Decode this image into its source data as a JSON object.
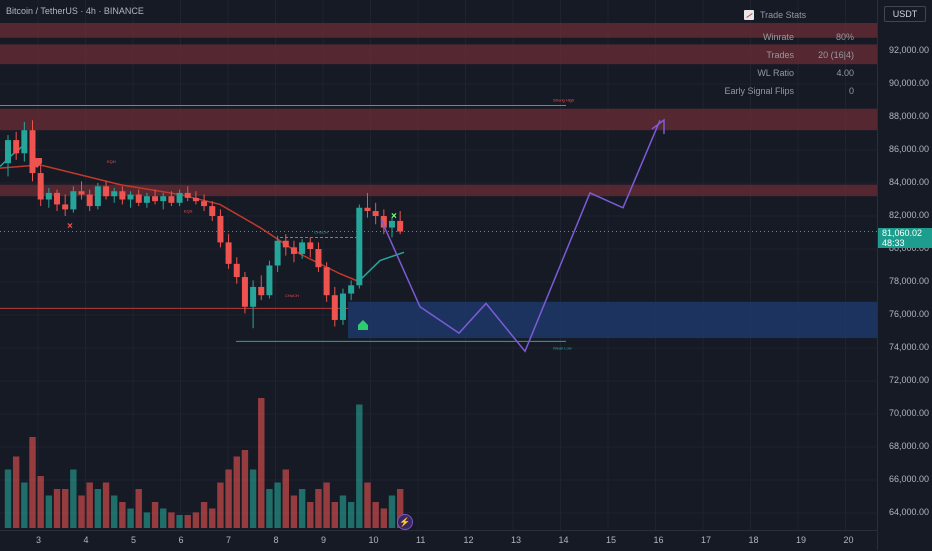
{
  "header": {
    "symbol_title": "Bitcoin / TetherUS · 4h · BINANCE",
    "currency": "USDT"
  },
  "trade_stats": {
    "title": "Trade Stats",
    "rows": [
      {
        "label": "Winrate",
        "value": "80%"
      },
      {
        "label": "Trades",
        "value": "20 (16|4)"
      },
      {
        "label": "WL Ratio",
        "value": "4.00"
      },
      {
        "label": "Early Signal Flips",
        "value": "0"
      }
    ]
  },
  "price_axis": {
    "labels": [
      "92,000.00",
      "90,000.00",
      "88,000.00",
      "86,000.00",
      "84,000.00",
      "82,000.00",
      "80,000.00",
      "78,000.00",
      "76,000.00",
      "74,000.00",
      "72,000.00",
      "70,000.00",
      "68,000.00",
      "66,000.00",
      "64,000.00"
    ],
    "current_price": "81,060.02",
    "countdown": "48:33"
  },
  "time_axis": {
    "labels": [
      "3",
      "4",
      "5",
      "6",
      "7",
      "8",
      "9",
      "10",
      "11",
      "12",
      "13",
      "14",
      "15",
      "16",
      "17",
      "18",
      "19",
      "20"
    ]
  },
  "annotations": {
    "strong_high": "Strong High",
    "weak_low": "Weak Low",
    "choch": "CHoCH",
    "eqh": "EQH",
    "eqs": "EQS",
    "choch2": "CHoCH"
  },
  "colors": {
    "up": "#26a69a",
    "down": "#ef5350",
    "projection": "#7b5cd6",
    "zone_red": "#6b2e35",
    "zone_blue": "#1e3a6e"
  },
  "chart_data": {
    "type": "candlestick",
    "symbol": "BTC/USDT",
    "timeframe": "4h",
    "ylim": [
      63000,
      93500
    ],
    "resistance_zones": [
      [
        92800,
        93700
      ],
      [
        91200,
        92400
      ],
      [
        87200,
        88500
      ],
      [
        83200,
        83900
      ]
    ],
    "demand_zone": [
      74600,
      76800
    ],
    "strong_high": 88700,
    "weak_low": 74400,
    "current_price": 81060.02,
    "projection_path": [
      81800,
      76500,
      74900,
      76700,
      73800,
      83400,
      82500,
      87800
    ],
    "candles": [
      [
        85200,
        86900,
        84400,
        86600
      ],
      [
        86600,
        87100,
        85400,
        85800
      ],
      [
        85800,
        87700,
        85300,
        87200
      ],
      [
        87200,
        87800,
        84100,
        84600
      ],
      [
        84600,
        85100,
        82600,
        83000
      ],
      [
        83000,
        83700,
        82500,
        83400
      ],
      [
        83400,
        83600,
        82300,
        82700
      ],
      [
        82700,
        83300,
        82000,
        82400
      ],
      [
        82400,
        83800,
        82200,
        83500
      ],
      [
        83500,
        84100,
        83000,
        83300
      ],
      [
        83300,
        83600,
        82300,
        82600
      ],
      [
        82600,
        84000,
        82400,
        83800
      ],
      [
        83800,
        84100,
        83000,
        83200
      ],
      [
        83200,
        83700,
        82800,
        83500
      ],
      [
        83500,
        83800,
        82700,
        83000
      ],
      [
        83000,
        83500,
        82500,
        83300
      ],
      [
        83300,
        83600,
        82600,
        82800
      ],
      [
        82800,
        83400,
        82500,
        83200
      ],
      [
        83200,
        83600,
        82700,
        82900
      ],
      [
        82900,
        83400,
        82400,
        83200
      ],
      [
        83200,
        83500,
        82600,
        82800
      ],
      [
        82800,
        83600,
        82600,
        83400
      ],
      [
        83400,
        83800,
        82900,
        83100
      ],
      [
        83100,
        83500,
        82700,
        82900
      ],
      [
        82900,
        83300,
        82300,
        82600
      ],
      [
        82600,
        82900,
        81700,
        82000
      ],
      [
        82000,
        82400,
        80100,
        80400
      ],
      [
        80400,
        80900,
        78800,
        79100
      ],
      [
        79100,
        79500,
        77900,
        78300
      ],
      [
        78300,
        78600,
        76100,
        76500
      ],
      [
        76500,
        78100,
        75200,
        77700
      ],
      [
        77700,
        78400,
        76900,
        77200
      ],
      [
        77200,
        79300,
        77000,
        79000
      ],
      [
        79000,
        80800,
        78600,
        80500
      ],
      [
        80500,
        80900,
        79600,
        80100
      ],
      [
        80100,
        80500,
        79200,
        79700
      ],
      [
        79700,
        80600,
        79400,
        80400
      ],
      [
        80400,
        80700,
        79500,
        80000
      ],
      [
        80000,
        80400,
        78600,
        78900
      ],
      [
        78900,
        79200,
        76800,
        77200
      ],
      [
        77200,
        77700,
        75300,
        75700
      ],
      [
        75700,
        77600,
        75400,
        77300
      ],
      [
        77300,
        78100,
        76900,
        77800
      ],
      [
        77800,
        82700,
        77600,
        82500
      ],
      [
        82500,
        83400,
        81900,
        82300
      ],
      [
        82300,
        82800,
        81500,
        82000
      ],
      [
        82000,
        82400,
        80900,
        81300
      ],
      [
        81300,
        81900,
        80700,
        81700
      ],
      [
        81700,
        82300,
        80900,
        81060
      ]
    ]
  }
}
